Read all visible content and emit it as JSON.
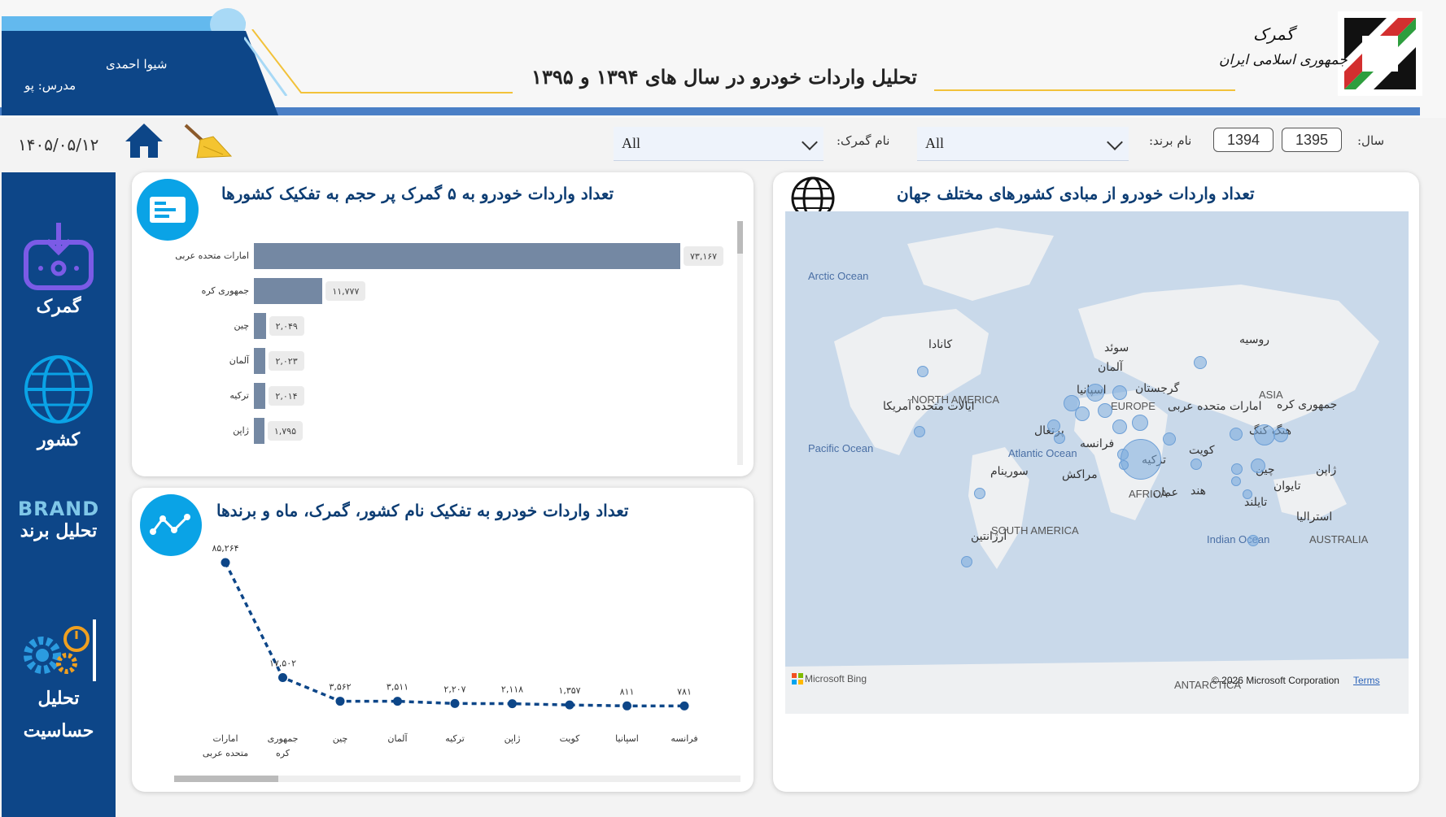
{
  "header": {
    "title": "تحلیل واردات خودرو در سال های ۱۳۹۴ و ۱۳۹۵",
    "teacher_name": "شیوا احمدی",
    "teacher_label": "مدرس: پو",
    "logo_line1": "گمرک",
    "logo_line2": "جمهوری اسلامی ایران"
  },
  "filters": {
    "date": "۱۴۰۵/۰۵/۱۲",
    "customs_label": "نام گمرک:",
    "customs_value": "All",
    "brand_label": "نام برند:",
    "brand_value": "All",
    "year_label": "سال:",
    "years": [
      "1394",
      "1395"
    ]
  },
  "sidebar": {
    "items": [
      {
        "label": "گمرک"
      },
      {
        "label": "کشور"
      },
      {
        "brand_word": "BRAND",
        "label": "تحلیل برند"
      },
      {
        "label_line1": "تحلیل",
        "label_line2": "حساسیت"
      }
    ]
  },
  "bar_card": {
    "title": "تعداد واردات خودرو به ۵ گمرک پر حجم به تفکیک کشورها"
  },
  "bar_chart": {
    "type": "bar",
    "categories": [
      "امارات متحده عربی",
      "جمهوری کره",
      "چین",
      "آلمان",
      "ترکیه",
      "ژاپن"
    ],
    "values": [
      73167,
      11777,
      2049,
      2023,
      2014,
      1795
    ],
    "labels": [
      "۷۳,۱۶۷",
      "۱۱,۷۷۷",
      "۲,۰۴۹",
      "۲,۰۲۳",
      "۲,۰۱۴",
      "۱,۷۹۵"
    ]
  },
  "line_card": {
    "title": "تعداد واردات خودرو به تفکیک نام کشور، گمرک، ماه و برندها"
  },
  "chart_data": {
    "type": "line",
    "categories": [
      "امارات متحده عربی",
      "جمهوری کره",
      "چین",
      "آلمان",
      "ترکیه",
      "ژاپن",
      "کویت",
      "اسپانیا",
      "فرانسه"
    ],
    "values": [
      85264,
      17502,
      3562,
      3511,
      2207,
      2118,
      1357,
      811,
      781
    ],
    "labels": [
      "۸۵,۲۶۴",
      "۱۷,۵۰۲",
      "۳,۵۶۲",
      "۳,۵۱۱",
      "۲,۲۰۷",
      "۲,۱۱۸",
      "۱,۳۵۷",
      "۸۱۱",
      "۷۸۱"
    ],
    "cat_line1": [
      "امارات",
      "جمهوری",
      "چین",
      "آلمان",
      "ترکیه",
      "ژاپن",
      "کویت",
      "اسپانیا",
      "فرانسه"
    ],
    "cat_line2": [
      "متحده عربی",
      "کره",
      "",
      "",
      "",
      "",
      "",
      "",
      ""
    ]
  },
  "map_card": {
    "title": "تعداد واردات خودرو از مبادی کشورهای مختلف جهان",
    "oceans": [
      "Arctic Ocean",
      "Pacific Ocean",
      "Atlantic Ocean",
      "Indian Ocean"
    ],
    "regions": [
      "NORTH AMERICA",
      "SOUTH AMERICA",
      "EUROPE",
      "AFRICA",
      "ASIA",
      "AUSTRALIA",
      "ANTARCTICA"
    ],
    "countries": [
      "کانادا",
      "روسیه",
      "سوئد",
      "آلمان",
      "اسپانیا",
      "گرجستان",
      "ایالات متحده آمریکا",
      "امارات متحده عربی",
      "جمهوری کره",
      "پرتغال",
      "فرانسه",
      "هنگ کنگ",
      "ترکیه",
      "کویت",
      "چین",
      "ژاپن",
      "سورینام",
      "مراکش",
      "عمان",
      "هند",
      "تایوان",
      "تایلند",
      "استرالیا",
      "آرژانتین"
    ],
    "copyright": "© 2026 Microsoft Corporation",
    "terms": "Terms",
    "bing": "Microsoft Bing"
  },
  "colors": {
    "navy": "#0d4688",
    "accent_blue": "#0aa3e6",
    "bar": "#7488a3",
    "line": "#0d4688",
    "map_water": "#c9d9ea",
    "gold": "#f2c23a"
  }
}
